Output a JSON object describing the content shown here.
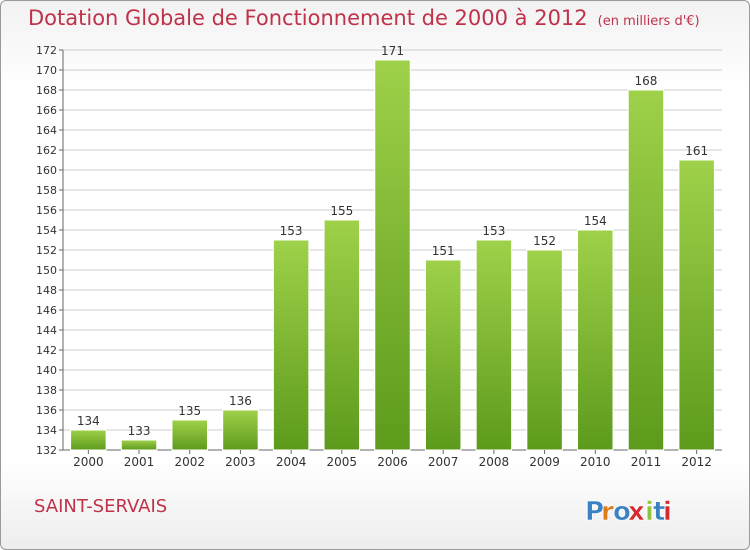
{
  "header": {
    "title": "Dotation Globale de Fonctionnement de 2000 à 2012",
    "units": "(en milliers d'€)"
  },
  "footer": {
    "commune": "SAINT-SERVAIS",
    "logo_text": "Proxiti"
  },
  "colors": {
    "title": "#c0314a",
    "bar_light": "#9fd14a",
    "bar_dark": "#5d9a1c",
    "grid": "#cccccc",
    "logo_letters": [
      "#3b82c4",
      "#e07b1a",
      "#3b82c4",
      "#d8282f",
      "#8cc43c",
      "#3b82c4",
      "#d8282f"
    ]
  },
  "chart_data": {
    "type": "bar",
    "title": "Dotation Globale de Fonctionnement de 2000 à 2012",
    "subtitle": "(en milliers d'€)",
    "xlabel": "",
    "ylabel": "",
    "categories": [
      "2000",
      "2001",
      "2002",
      "2003",
      "2004",
      "2005",
      "2006",
      "2007",
      "2008",
      "2009",
      "2010",
      "2011",
      "2012"
    ],
    "values": [
      134,
      133,
      135,
      136,
      153,
      155,
      171,
      151,
      153,
      152,
      154,
      168,
      161
    ],
    "ylim": [
      132,
      172
    ],
    "yticks": [
      132,
      134,
      136,
      138,
      140,
      142,
      144,
      146,
      148,
      150,
      152,
      154,
      156,
      158,
      160,
      162,
      164,
      166,
      168,
      170,
      172
    ],
    "grid": true,
    "legend": "none"
  }
}
